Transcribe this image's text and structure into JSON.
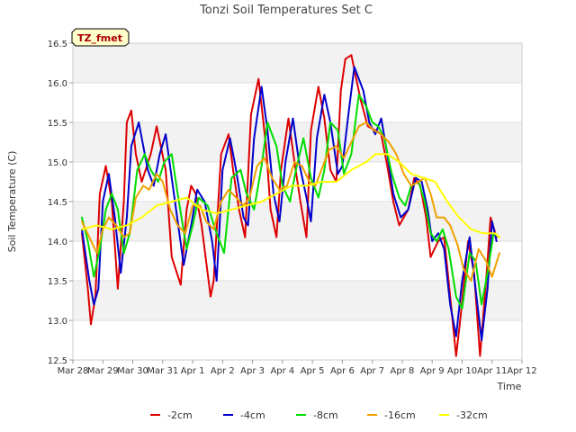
{
  "chart_data": {
    "type": "line",
    "title": "Tonzi Soil Temperatures Set C",
    "xlabel": "Time",
    "ylabel": "Soil Temperature (C)",
    "annotation": "TZ_fmet",
    "xlim": [
      0,
      15
    ],
    "ylim": [
      12.5,
      16.5
    ],
    "x_tick_values": [
      0,
      1,
      2,
      3,
      4,
      5,
      6,
      7,
      8,
      9,
      10,
      11,
      12,
      13,
      14,
      15
    ],
    "x_tick_labels": [
      "Mar 28",
      "Mar 29",
      "Mar 30",
      "Mar 31",
      "Apr 1",
      "Apr 2",
      "Apr 3",
      "Apr 4",
      "Apr 5",
      "Apr 6",
      "Apr 7",
      "Apr 8",
      "Apr 9",
      "Apr 10",
      "Apr 11",
      "Apr 12"
    ],
    "y_ticks": [
      12.5,
      13.0,
      13.5,
      14.0,
      14.5,
      15.0,
      15.5,
      16.0,
      16.5
    ],
    "y_tick_labels": [
      "12.5",
      "13.0",
      "13.5",
      "14.0",
      "14.5",
      "15.0",
      "15.5",
      "16.0",
      "16.5"
    ],
    "grid": true,
    "legend_position": "bottom",
    "x_unit_note": "x values in days since Mar 28",
    "series": [
      {
        "name": "-2cm",
        "color": "#dd0000",
        "x": [
          0.3,
          0.5,
          0.6,
          0.75,
          0.9,
          1.1,
          1.3,
          1.5,
          1.7,
          1.8,
          1.95,
          2.1,
          2.3,
          2.6,
          2.8,
          3.1,
          3.3,
          3.6,
          3.8,
          3.95,
          4.1,
          4.3,
          4.6,
          4.7,
          4.95,
          5.2,
          5.35,
          5.55,
          5.75,
          5.95,
          6.2,
          6.45,
          6.6,
          6.8,
          6.95,
          7.2,
          7.4,
          7.6,
          7.8,
          7.95,
          8.2,
          8.4,
          8.6,
          8.8,
          8.95,
          9.1,
          9.3,
          9.6,
          9.85,
          10.1,
          10.3,
          10.5,
          10.7,
          10.9,
          11.2,
          11.4,
          11.6,
          11.8,
          11.95,
          12.2,
          12.4,
          12.6,
          12.8,
          12.95,
          13.2,
          13.4,
          13.6,
          13.8,
          13.95,
          14.15
        ],
        "y": [
          14.1,
          13.4,
          12.95,
          13.3,
          14.6,
          14.95,
          14.5,
          13.4,
          14.5,
          15.5,
          15.65,
          15.1,
          14.75,
          15.1,
          15.45,
          14.9,
          13.8,
          13.45,
          14.4,
          14.7,
          14.6,
          14.2,
          13.3,
          13.5,
          15.1,
          15.35,
          14.9,
          14.4,
          14.05,
          15.6,
          16.05,
          15.2,
          14.4,
          14.05,
          14.9,
          15.55,
          15.0,
          14.5,
          14.05,
          15.4,
          15.95,
          15.55,
          14.9,
          14.75,
          15.9,
          16.3,
          16.35,
          15.8,
          15.45,
          15.4,
          15.35,
          14.95,
          14.5,
          14.2,
          14.4,
          14.8,
          14.7,
          14.3,
          13.8,
          14.0,
          14.05,
          13.3,
          12.55,
          13.05,
          14.0,
          13.6,
          12.55,
          13.5,
          14.3,
          14.05
        ]
      },
      {
        "name": "-4cm",
        "color": "#0000cc",
        "x": [
          0.3,
          0.55,
          0.7,
          0.85,
          1.0,
          1.2,
          1.4,
          1.6,
          1.8,
          1.95,
          2.2,
          2.5,
          2.7,
          2.9,
          3.1,
          3.3,
          3.7,
          3.95,
          4.15,
          4.4,
          4.65,
          4.8,
          5.0,
          5.25,
          5.45,
          5.7,
          5.85,
          6.05,
          6.3,
          6.5,
          6.7,
          6.9,
          7.1,
          7.35,
          7.55,
          7.8,
          7.95,
          8.15,
          8.4,
          8.6,
          8.85,
          9.0,
          9.2,
          9.4,
          9.7,
          9.9,
          10.1,
          10.3,
          10.5,
          10.7,
          10.95,
          11.2,
          11.45,
          11.65,
          11.85,
          12.0,
          12.2,
          12.4,
          12.6,
          12.8,
          13.0,
          13.25,
          13.45,
          13.65,
          13.85,
          14.0,
          14.15
        ],
        "y": [
          14.15,
          13.5,
          13.2,
          13.4,
          14.5,
          14.85,
          14.3,
          13.6,
          14.3,
          15.2,
          15.5,
          14.9,
          14.7,
          15.1,
          15.35,
          14.8,
          13.7,
          14.2,
          14.65,
          14.5,
          14.0,
          13.5,
          14.9,
          15.3,
          14.9,
          14.3,
          14.2,
          15.3,
          15.95,
          15.4,
          14.6,
          14.25,
          15.0,
          15.55,
          15.0,
          14.55,
          14.25,
          15.3,
          15.85,
          15.5,
          14.85,
          14.95,
          15.6,
          16.2,
          15.9,
          15.5,
          15.35,
          15.55,
          15.1,
          14.6,
          14.3,
          14.4,
          14.8,
          14.75,
          14.4,
          14.0,
          14.1,
          13.9,
          13.2,
          12.8,
          13.5,
          14.05,
          13.4,
          12.75,
          13.4,
          14.25,
          14.0
        ]
      },
      {
        "name": "-8cm",
        "color": "#00dd00",
        "x": [
          0.3,
          0.5,
          0.7,
          0.9,
          1.1,
          1.3,
          1.5,
          1.7,
          1.9,
          2.15,
          2.4,
          2.6,
          2.85,
          3.05,
          3.3,
          3.5,
          3.8,
          4.0,
          4.2,
          4.5,
          4.8,
          5.05,
          5.3,
          5.6,
          5.8,
          6.05,
          6.3,
          6.5,
          6.8,
          7.0,
          7.25,
          7.45,
          7.7,
          7.95,
          8.2,
          8.4,
          8.6,
          8.85,
          9.05,
          9.3,
          9.55,
          9.8,
          10.0,
          10.2,
          10.4,
          10.65,
          10.9,
          11.1,
          11.3,
          11.55,
          11.75,
          11.95,
          12.15,
          12.35,
          12.55,
          12.8,
          13.0,
          13.25,
          13.45,
          13.65,
          13.85,
          14.05,
          14.25
        ],
        "y": [
          14.3,
          14.0,
          13.55,
          13.9,
          14.4,
          14.6,
          14.4,
          13.85,
          14.1,
          14.9,
          15.1,
          14.9,
          14.75,
          15.0,
          15.1,
          14.6,
          13.9,
          14.2,
          14.55,
          14.45,
          14.1,
          13.85,
          14.8,
          14.9,
          14.6,
          14.4,
          14.95,
          15.5,
          15.2,
          14.7,
          14.5,
          14.9,
          15.3,
          14.8,
          14.55,
          14.9,
          15.5,
          15.4,
          14.85,
          15.1,
          15.85,
          15.7,
          15.5,
          15.45,
          15.3,
          14.85,
          14.55,
          14.45,
          14.7,
          14.75,
          14.5,
          14.1,
          14.0,
          14.15,
          13.9,
          13.3,
          13.15,
          13.85,
          13.75,
          13.2,
          13.6,
          14.1,
          14.05
        ]
      },
      {
        "name": "-16cm",
        "color": "#f0a000",
        "x": [
          0.3,
          0.55,
          0.8,
          1.0,
          1.2,
          1.45,
          1.7,
          1.9,
          2.1,
          2.35,
          2.55,
          2.8,
          3.0,
          3.25,
          3.5,
          3.75,
          4.0,
          4.25,
          4.45,
          4.7,
          4.95,
          5.2,
          5.45,
          5.7,
          5.9,
          6.15,
          6.4,
          6.65,
          6.9,
          7.15,
          7.4,
          7.65,
          7.9,
          8.1,
          8.35,
          8.55,
          8.8,
          9.05,
          9.3,
          9.55,
          9.8,
          10.05,
          10.3,
          10.55,
          10.8,
          11.05,
          11.3,
          11.55,
          11.75,
          11.95,
          12.15,
          12.4,
          12.6,
          12.85,
          13.05,
          13.3,
          13.55,
          13.8,
          14.0,
          14.25
        ],
        "y": [
          14.25,
          14.05,
          13.85,
          14.15,
          14.3,
          14.2,
          14.05,
          14.1,
          14.55,
          14.7,
          14.65,
          14.85,
          14.75,
          14.4,
          14.2,
          14.1,
          14.45,
          14.45,
          14.25,
          14.15,
          14.5,
          14.65,
          14.55,
          14.45,
          14.55,
          14.95,
          15.05,
          14.8,
          14.65,
          14.7,
          15.0,
          14.95,
          14.75,
          14.7,
          14.95,
          15.15,
          15.2,
          15.05,
          15.25,
          15.45,
          15.5,
          15.4,
          15.35,
          15.25,
          15.1,
          14.85,
          14.7,
          14.75,
          14.8,
          14.6,
          14.3,
          14.3,
          14.2,
          13.95,
          13.65,
          13.5,
          13.9,
          13.75,
          13.55,
          13.85
        ]
      },
      {
        "name": "-32cm",
        "color": "#ffff00",
        "x": [
          0.3,
          0.8,
          1.3,
          1.8,
          2.3,
          2.8,
          3.3,
          3.8,
          4.3,
          4.8,
          5.3,
          5.8,
          6.3,
          6.8,
          7.3,
          7.8,
          8.3,
          8.8,
          9.3,
          9.8,
          10.1,
          10.5,
          10.9,
          11.3,
          11.7,
          12.1,
          12.5,
          12.9,
          13.3,
          13.7,
          14.1,
          14.25
        ],
        "y": [
          14.15,
          14.2,
          14.15,
          14.2,
          14.3,
          14.45,
          14.5,
          14.55,
          14.4,
          14.35,
          14.4,
          14.45,
          14.5,
          14.6,
          14.7,
          14.7,
          14.75,
          14.75,
          14.9,
          15.0,
          15.1,
          15.1,
          15.0,
          14.85,
          14.8,
          14.75,
          14.5,
          14.3,
          14.15,
          14.1,
          14.1,
          14.05
        ]
      }
    ]
  }
}
